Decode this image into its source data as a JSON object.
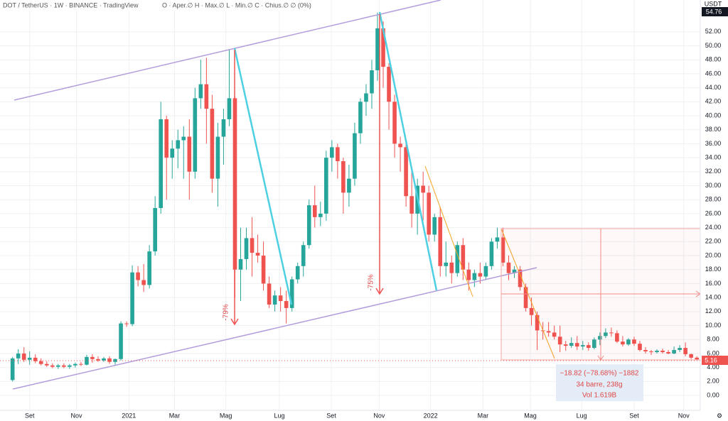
{
  "chart_data": {
    "type": "candlestick",
    "title": "DOT / TetherUS · 1W · BINANCE · TradingView",
    "subtitle": "O · Aper.∅ H · Max.∅ L · Min.∅ C · Chius.∅ ∅ (0%)",
    "currency": "USDT",
    "up_color": "#26a69a",
    "down_color": "#ef5350",
    "grid": true,
    "xlim": [
      -2.2,
      120.6
    ],
    "ylim": [
      -2.13,
      56.55
    ],
    "xticks": [
      {
        "value": 3,
        "label": "Set"
      },
      {
        "value": 11.2,
        "label": "Nov"
      },
      {
        "value": 20.4,
        "label": "2021"
      },
      {
        "value": 28.4,
        "label": "Mar"
      },
      {
        "value": 37.4,
        "label": "Mag"
      },
      {
        "value": 46.8,
        "label": "Lug"
      },
      {
        "value": 55.9,
        "label": "Set"
      },
      {
        "value": 64.3,
        "label": "Nov"
      },
      {
        "value": 73.3,
        "label": "2022"
      },
      {
        "value": 82.5,
        "label": "Mar"
      },
      {
        "value": 90.8,
        "label": "Mag"
      },
      {
        "value": 99.8,
        "label": "Lug"
      },
      {
        "value": 109,
        "label": "Set"
      },
      {
        "value": 117.7,
        "label": "Nov"
      }
    ],
    "yticks": [
      {
        "value": 0,
        "label": "0.00"
      },
      {
        "value": 2,
        "label": "2.00"
      },
      {
        "value": 4,
        "label": "4.00"
      },
      {
        "value": 6,
        "label": "6.00"
      },
      {
        "value": 8,
        "label": "8.00"
      },
      {
        "value": 10,
        "label": "10.00"
      },
      {
        "value": 12,
        "label": "12.00"
      },
      {
        "value": 14,
        "label": "14.00"
      },
      {
        "value": 16,
        "label": "16.00"
      },
      {
        "value": 18,
        "label": "18.00"
      },
      {
        "value": 20,
        "label": "20.00"
      },
      {
        "value": 22,
        "label": "22.00"
      },
      {
        "value": 24,
        "label": "24.00"
      },
      {
        "value": 26,
        "label": "26.00"
      },
      {
        "value": 28,
        "label": "28.00"
      },
      {
        "value": 30,
        "label": "30.00"
      },
      {
        "value": 32,
        "label": "32.00"
      },
      {
        "value": 34,
        "label": "34.00"
      },
      {
        "value": 36,
        "label": "36.00"
      },
      {
        "value": 38,
        "label": "38.00"
      },
      {
        "value": 40,
        "label": "40.00"
      },
      {
        "value": 42,
        "label": "42.00"
      },
      {
        "value": 44,
        "label": "44.00"
      },
      {
        "value": 46,
        "label": "46.00"
      },
      {
        "value": 48,
        "label": "48.00"
      },
      {
        "value": 50,
        "label": "50.00"
      },
      {
        "value": 52,
        "label": "52.00"
      }
    ],
    "last_price": 5.16,
    "high_price": 54.76,
    "ohlc": [
      [
        2.2,
        5.5,
        2.0,
        5.3
      ],
      [
        5.3,
        6.6,
        4.5,
        6.0
      ],
      [
        6.0,
        6.9,
        4.8,
        5.1
      ],
      [
        5.1,
        6.3,
        4.4,
        5.4
      ],
      [
        5.4,
        5.9,
        4.6,
        4.9
      ],
      [
        4.9,
        5.3,
        4.3,
        4.5
      ],
      [
        4.5,
        4.9,
        4.1,
        4.3
      ],
      [
        4.3,
        4.6,
        3.9,
        4.1
      ],
      [
        4.1,
        4.5,
        3.8,
        4.3
      ],
      [
        4.3,
        4.6,
        3.9,
        4.1
      ],
      [
        4.1,
        4.5,
        3.8,
        4.3
      ],
      [
        4.3,
        4.7,
        4.0,
        4.5
      ],
      [
        4.5,
        4.8,
        4.2,
        4.4
      ],
      [
        4.4,
        5.8,
        4.3,
        5.5
      ],
      [
        5.5,
        5.9,
        4.7,
        5.2
      ],
      [
        5.2,
        5.6,
        4.8,
        5.0
      ],
      [
        5.0,
        5.5,
        4.8,
        5.3
      ],
      [
        5.3,
        5.6,
        4.5,
        4.8
      ],
      [
        4.8,
        5.3,
        4.4,
        5.2
      ],
      [
        5.2,
        10.6,
        5.0,
        10.3
      ],
      [
        10.3,
        10.6,
        9.8,
        10.2
      ],
      [
        10.2,
        18.6,
        9.9,
        17.6
      ],
      [
        17.6,
        18.5,
        15.6,
        16.5
      ],
      [
        16.5,
        18.8,
        14.8,
        15.8
      ],
      [
        15.8,
        21.5,
        15.3,
        20.6
      ],
      [
        20.6,
        28.5,
        20.0,
        26.8
      ],
      [
        26.8,
        42.0,
        26.0,
        39.5
      ],
      [
        39.5,
        40.0,
        28.0,
        34.0
      ],
      [
        34.0,
        36.5,
        31.0,
        35.3
      ],
      [
        35.3,
        38.0,
        32.5,
        36.5
      ],
      [
        36.5,
        38.5,
        31.0,
        37.0
      ],
      [
        37.0,
        39.5,
        28.0,
        32.0
      ],
      [
        32.0,
        44.0,
        31.0,
        42.5
      ],
      [
        42.5,
        48.0,
        41.0,
        44.5
      ],
      [
        44.5,
        48.3,
        36.0,
        41.0
      ],
      [
        41.0,
        43.0,
        29.0,
        31.0
      ],
      [
        31.0,
        39.0,
        27.0,
        37.0
      ],
      [
        37.0,
        41.0,
        33.0,
        39.5
      ],
      [
        39.5,
        49.5,
        38.5,
        42.5
      ],
      [
        42.5,
        42.8,
        14.0,
        18.0
      ],
      [
        18.0,
        24.0,
        13.5,
        19.5
      ],
      [
        19.5,
        24.0,
        18.0,
        22.5
      ],
      [
        22.5,
        25.5,
        17.0,
        20.4
      ],
      [
        20.4,
        23.0,
        19.0,
        20.0
      ],
      [
        20.0,
        22.0,
        15.0,
        16.0
      ],
      [
        16.0,
        17.0,
        12.5,
        13.0
      ],
      [
        13.0,
        15.0,
        12.0,
        14.3
      ],
      [
        14.3,
        15.5,
        12.0,
        13.5
      ],
      [
        13.5,
        15.0,
        10.3,
        12.5
      ],
      [
        12.5,
        17.0,
        12.0,
        16.6
      ],
      [
        16.6,
        19.0,
        16.0,
        18.5
      ],
      [
        18.5,
        22.0,
        17.0,
        21.5
      ],
      [
        21.5,
        28.0,
        21.0,
        27.2
      ],
      [
        27.2,
        30.0,
        24.0,
        25.5
      ],
      [
        25.5,
        27.7,
        24.2,
        26.0
      ],
      [
        26.0,
        35.0,
        25.0,
        34.0
      ],
      [
        34.0,
        36.5,
        32.0,
        35.5
      ],
      [
        35.5,
        36.0,
        31.0,
        33.5
      ],
      [
        33.5,
        34.0,
        26.0,
        29.0
      ],
      [
        29.0,
        33.0,
        27.0,
        31.0
      ],
      [
        31.0,
        39.0,
        30.0,
        37.5
      ],
      [
        37.5,
        42.5,
        36.0,
        42.0
      ],
      [
        42.0,
        44.5,
        40.0,
        43.2
      ],
      [
        43.2,
        48.0,
        41.0,
        46.5
      ],
      [
        46.5,
        54.76,
        45.0,
        52.5
      ],
      [
        52.5,
        53.5,
        44.0,
        47.0
      ],
      [
        47.0,
        47.5,
        38.0,
        42.0
      ],
      [
        42.0,
        43.0,
        34.0,
        36.0
      ],
      [
        36.0,
        37.0,
        32.0,
        35.5
      ],
      [
        35.5,
        36.0,
        27.0,
        28.5
      ],
      [
        28.5,
        32.0,
        24.0,
        26.0
      ],
      [
        26.0,
        31.0,
        23.0,
        30.0
      ],
      [
        30.0,
        32.0,
        25.0,
        29.0
      ],
      [
        29.0,
        30.0,
        22.0,
        23.0
      ],
      [
        23.0,
        26.0,
        22.0,
        25.5
      ],
      [
        25.5,
        27.0,
        17.0,
        18.5
      ],
      [
        18.5,
        22.0,
        17.0,
        19.0
      ],
      [
        19.0,
        20.0,
        16.0,
        17.5
      ],
      [
        17.5,
        22.0,
        17.0,
        21.5
      ],
      [
        21.5,
        22.5,
        16.5,
        18.0
      ],
      [
        18.0,
        19.0,
        15.0,
        16.5
      ],
      [
        16.5,
        18.0,
        15.5,
        17.5
      ],
      [
        17.5,
        19.0,
        16.0,
        17.0
      ],
      [
        17.0,
        19.0,
        16.5,
        18.5
      ],
      [
        18.5,
        22.5,
        18.0,
        22.0
      ],
      [
        22.0,
        24.0,
        21.0,
        22.6
      ],
      [
        22.6,
        24.0,
        18.5,
        19.0
      ],
      [
        19.0,
        20.0,
        16.5,
        17.5
      ],
      [
        17.5,
        18.5,
        16.8,
        18.0
      ],
      [
        18.0,
        18.5,
        15.0,
        15.5
      ],
      [
        15.5,
        16.0,
        12.0,
        12.5
      ],
      [
        12.5,
        14.0,
        10.0,
        11.5
      ],
      [
        11.5,
        12.0,
        6.5,
        9.3
      ],
      [
        9.3,
        10.5,
        8.0,
        9.2
      ],
      [
        9.2,
        10.5,
        8.4,
        9.0
      ],
      [
        9.0,
        10.0,
        8.0,
        8.4
      ],
      [
        8.4,
        10.0,
        6.2,
        7.3
      ],
      [
        7.3,
        7.8,
        6.4,
        7.1
      ],
      [
        7.1,
        8.3,
        6.8,
        7.5
      ],
      [
        7.5,
        8.5,
        6.5,
        7.0
      ],
      [
        7.0,
        7.8,
        6.5,
        7.2
      ],
      [
        7.2,
        7.6,
        6.4,
        6.8
      ],
      [
        6.8,
        8.3,
        6.6,
        8.0
      ],
      [
        8.0,
        9.0,
        7.2,
        8.5
      ],
      [
        8.5,
        9.6,
        8.2,
        9.0
      ],
      [
        9.0,
        9.7,
        8.4,
        8.9
      ],
      [
        8.9,
        9.3,
        7.5,
        7.7
      ],
      [
        7.7,
        8.5,
        7.0,
        7.3
      ],
      [
        7.3,
        8.2,
        7.1,
        8.0
      ],
      [
        8.0,
        8.4,
        7.1,
        7.4
      ],
      [
        7.4,
        7.8,
        6.3,
        6.5
      ],
      [
        6.5,
        6.9,
        6.0,
        6.3
      ],
      [
        6.3,
        6.5,
        5.8,
        6.2
      ],
      [
        6.2,
        6.6,
        6.0,
        6.4
      ],
      [
        6.4,
        6.7,
        6.0,
        6.2
      ],
      [
        6.2,
        6.5,
        5.9,
        6.0
      ],
      [
        6.0,
        7.0,
        5.9,
        6.5
      ],
      [
        6.5,
        7.2,
        6.2,
        6.8
      ],
      [
        6.8,
        7.6,
        5.6,
        5.9
      ],
      [
        5.9,
        6.0,
        5.2,
        5.4
      ],
      [
        5.4,
        5.6,
        5.1,
        5.16
      ]
    ],
    "annotations": [
      "-79%",
      "-75%"
    ],
    "measure": [
      "−18.82 (−78.68%) −1882",
      "34 barre, 238g",
      "Vol 1.619B"
    ]
  }
}
